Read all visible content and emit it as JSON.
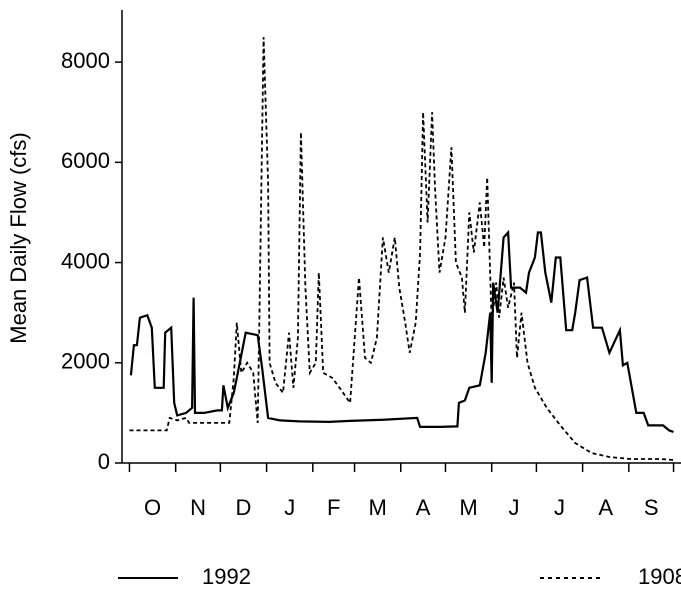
{
  "chart_data": {
    "type": "line",
    "y_label": "Mean Daily Flow (cfs)",
    "categories": [
      "O",
      "N",
      "D",
      "J",
      "F",
      "M",
      "A",
      "M",
      "J",
      "J",
      "A",
      "S"
    ],
    "xlim": [
      -5,
      370
    ],
    "xticks": [
      0,
      31,
      61,
      92,
      123,
      151,
      182,
      212,
      243,
      273,
      304,
      335,
      365
    ],
    "ylim": [
      0,
      9000
    ],
    "yticks": [
      0,
      2000,
      4000,
      6000,
      8000
    ],
    "legend": "bottom",
    "series": [
      {
        "name": "1992",
        "color": "#000000",
        "dash": "solid",
        "x": [
          1,
          3,
          5,
          7,
          12,
          15,
          17,
          23,
          24,
          28,
          30,
          32,
          38,
          42,
          43,
          44,
          50,
          59,
          62,
          63,
          66,
          70,
          74,
          78,
          86,
          89,
          93,
          101,
          114,
          134,
          148,
          168,
          193,
          195,
          208,
          220,
          221,
          225,
          228,
          235,
          239,
          242,
          243,
          244,
          247,
          251,
          254,
          256,
          262,
          266,
          268,
          272,
          274,
          276,
          279,
          283,
          286,
          289,
          293,
          297,
          299,
          302,
          307,
          311,
          317,
          322,
          329,
          331,
          334,
          337,
          340,
          345,
          348,
          358,
          362,
          365
        ],
        "values": [
          1750,
          2350,
          2350,
          2900,
          2950,
          2700,
          1500,
          1500,
          2600,
          2700,
          1200,
          950,
          1000,
          1100,
          3300,
          1000,
          1000,
          1050,
          1050,
          1550,
          1100,
          1400,
          2000,
          2600,
          2550,
          1900,
          900,
          850,
          830,
          820,
          840,
          860,
          900,
          720,
          720,
          730,
          1200,
          1250,
          1500,
          1550,
          2200,
          3000,
          1600,
          3600,
          3000,
          4500,
          4600,
          3500,
          3500,
          3400,
          3800,
          4100,
          4600,
          4600,
          3800,
          3200,
          4100,
          4100,
          2650,
          2650,
          3000,
          3650,
          3700,
          2700,
          2700,
          2200,
          2650,
          1950,
          2000,
          1500,
          1000,
          1000,
          750,
          750,
          650,
          620
        ]
      },
      {
        "name": "1908",
        "color": "#000000",
        "dash": "dashed",
        "x": [
          0,
          25,
          27,
          32,
          38,
          40,
          67,
          70,
          72,
          75,
          79,
          83,
          86,
          87,
          90,
          93,
          94,
          98,
          103,
          107,
          110,
          113,
          115,
          118,
          121,
          125,
          127,
          130,
          136,
          141,
          148,
          154,
          158,
          162,
          166,
          170,
          174,
          178,
          181,
          185,
          188,
          192,
          195,
          197,
          200,
          203,
          205,
          208,
          212,
          216,
          219,
          223,
          225,
          228,
          231,
          235,
          238,
          240,
          243,
          246,
          248,
          251,
          254,
          258,
          260,
          263,
          267,
          272,
          280,
          289,
          299,
          310,
          322,
          336,
          356,
          365
        ],
        "values": [
          650,
          650,
          900,
          850,
          900,
          800,
          800,
          1700,
          2800,
          1800,
          2000,
          1800,
          800,
          2500,
          8500,
          5600,
          2000,
          1600,
          1400,
          2600,
          1500,
          2500,
          6600,
          3500,
          1800,
          2000,
          3800,
          1800,
          1700,
          1500,
          1200,
          3700,
          2100,
          2000,
          2500,
          4500,
          3800,
          4500,
          3500,
          2800,
          2200,
          2800,
          4200,
          7000,
          4800,
          7000,
          5500,
          3800,
          4500,
          6300,
          4000,
          3700,
          3000,
          5000,
          4200,
          5200,
          4300,
          5700,
          2800,
          3600,
          2900,
          3700,
          3100,
          3600,
          2100,
          3000,
          2000,
          1500,
          1100,
          750,
          400,
          200,
          120,
          80,
          80,
          60
        ]
      }
    ]
  }
}
